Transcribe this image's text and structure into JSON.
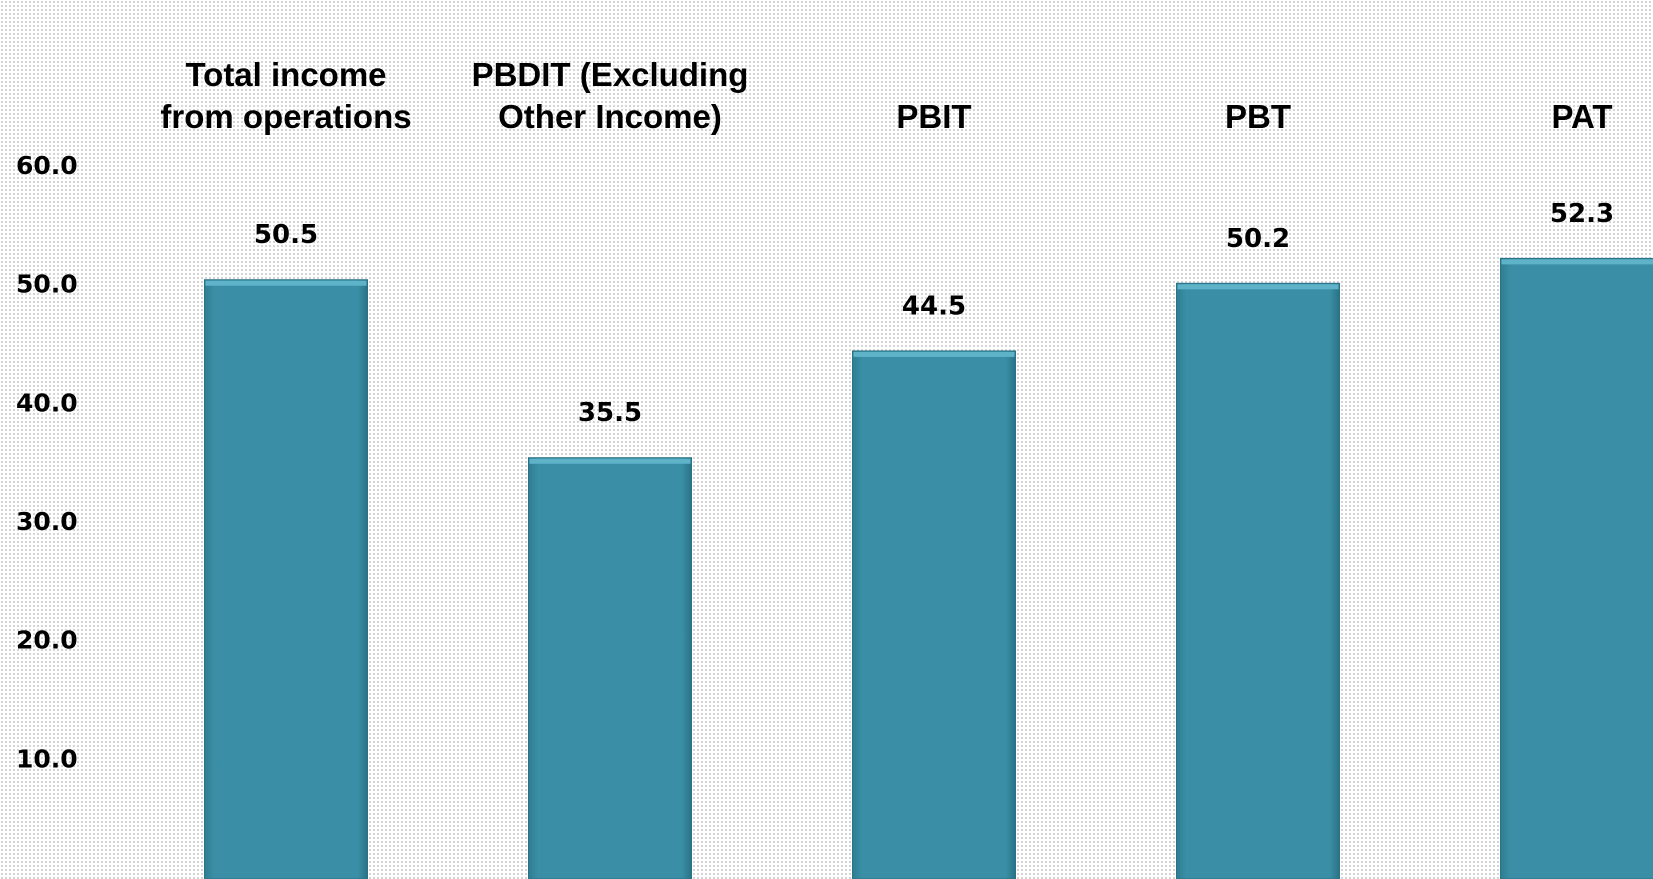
{
  "chart_data": {
    "type": "bar",
    "categories": [
      "Total income from operations",
      "PBDIT (Excluding Other Income)",
      "PBIT",
      "PBT",
      "PAT"
    ],
    "values": [
      50.5,
      35.5,
      44.5,
      50.2,
      52.3
    ],
    "color": "#388ca3",
    "ylim": [
      0,
      60
    ],
    "yticks": [
      {
        "value": 10,
        "label": "10.0"
      },
      {
        "value": 20,
        "label": "20.0"
      },
      {
        "value": 30,
        "label": "30.0"
      },
      {
        "value": 40,
        "label": "40.0"
      },
      {
        "value": 50,
        "label": "50.0"
      },
      {
        "value": 60,
        "label": "60.0"
      }
    ],
    "grid": false
  }
}
